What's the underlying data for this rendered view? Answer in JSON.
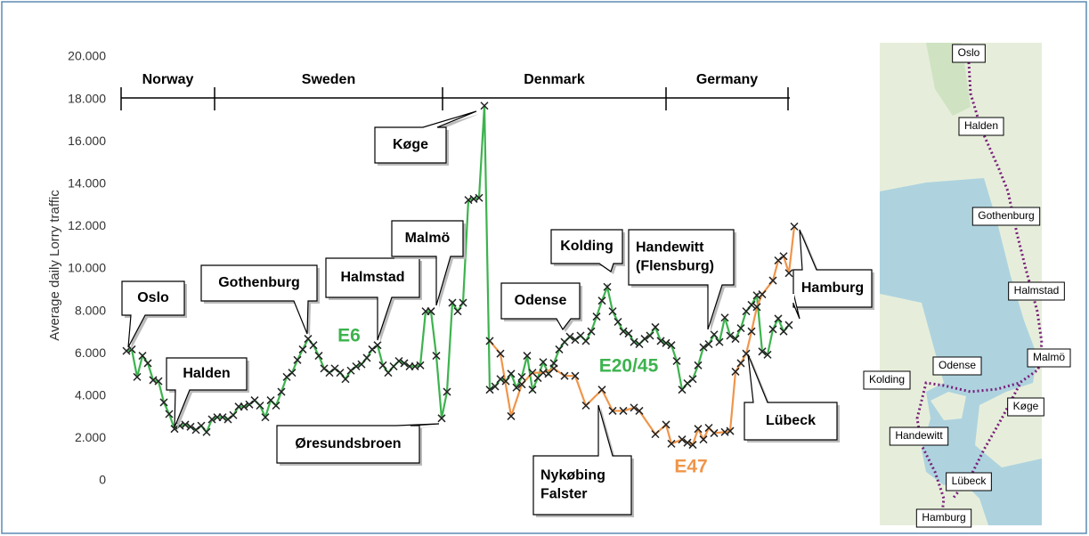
{
  "chart_data": {
    "type": "line",
    "ylabel": "Average daily Lorry traffic",
    "ylim": [
      0,
      20000
    ],
    "yticks": [
      0,
      {
        "value": 2000,
        "label": "2.000"
      },
      {
        "value": 4000,
        "label": "4.000"
      },
      {
        "value": 6000,
        "label": "6.000"
      },
      {
        "value": 8000,
        "label": "8.000"
      },
      {
        "value": 10000,
        "label": "10.000"
      },
      {
        "value": 12000,
        "label": "12.000"
      },
      {
        "value": 14000,
        "label": "14.000"
      },
      {
        "value": 16000,
        "label": "16.000"
      },
      {
        "value": 18000,
        "label": "18.000"
      },
      {
        "value": 20000,
        "label": "20.000"
      }
    ],
    "xlim": [
      0,
      127
    ],
    "regions": [
      "Norway",
      "Sweden",
      "Denmark",
      "Germany"
    ],
    "series": [
      {
        "name": "E6",
        "color": "#3db34e",
        "x": [
          1,
          2,
          3,
          4,
          5,
          6,
          7,
          8,
          9,
          10,
          11,
          12,
          13,
          14,
          15,
          16,
          17,
          18,
          19,
          20,
          21,
          22,
          23,
          24,
          25,
          26,
          27,
          28,
          29,
          30,
          31,
          32,
          33,
          34,
          35,
          36,
          37,
          38,
          39,
          40,
          41,
          42,
          43,
          44,
          45,
          46,
          47,
          48,
          49,
          50,
          51,
          52,
          53,
          54,
          55,
          56,
          57,
          58
        ],
        "values": [
          6130,
          6200,
          4900,
          5900,
          5550,
          4750,
          4700,
          3700,
          3150,
          2450,
          2600,
          2650,
          2550,
          2400,
          2600,
          2300,
          2900,
          3000,
          3000,
          2900,
          3100,
          3500,
          3500,
          3600,
          3800,
          3550,
          3000,
          3800,
          3550,
          4200,
          4900,
          5100,
          5700,
          6200,
          6700,
          6400,
          5900,
          5300,
          5100,
          5300,
          5100,
          4800,
          5200,
          5400,
          5500,
          5800,
          6200,
          6400,
          5450,
          5100,
          5400,
          5650,
          5550,
          5400,
          5400,
          5450,
          8000,
          8000
        ]
      },
      {
        "name": "E20/45",
        "color": "#3db34e",
        "x": [
          58,
          59,
          60,
          61,
          62,
          63,
          64,
          65,
          66,
          67,
          68,
          69,
          70,
          71,
          72,
          73,
          74,
          75,
          76,
          77,
          78,
          79,
          80,
          81,
          82,
          83,
          84,
          85,
          86,
          87,
          88,
          89,
          90,
          91,
          92,
          93,
          94,
          95,
          96,
          97,
          98,
          99,
          100,
          101,
          102,
          103,
          104,
          105,
          106,
          107,
          108,
          109,
          110,
          111,
          112,
          113,
          114,
          115,
          116,
          117,
          118,
          119,
          120,
          121,
          122,
          123,
          124,
          125
        ],
        "values": [
          8000,
          5900,
          2950,
          4200,
          8400,
          8000,
          8400,
          13250,
          13300,
          13350,
          17700,
          4300,
          4450,
          4800,
          4700,
          5050,
          4400,
          4900,
          5900,
          4300,
          4850,
          5600,
          5050,
          5550,
          6200,
          6550,
          6800,
          6650,
          6850,
          6600,
          7050,
          7750,
          8500,
          9150,
          8000,
          7500,
          7050,
          6950,
          6550,
          6450,
          6700,
          6850,
          7250,
          6600,
          6500,
          6400,
          5650,
          4300,
          4600,
          4800,
          5450,
          6300,
          6450,
          6900,
          6550,
          7700,
          6850,
          6700,
          7200,
          8000,
          8300,
          8750,
          6100,
          5950,
          7150,
          7650,
          7050,
          7350
        ]
      },
      {
        "name": "E47",
        "color": "#f0954a",
        "x": [
          69,
          71,
          73,
          75,
          77,
          79,
          81,
          83,
          85,
          87,
          90,
          92,
          94,
          96,
          97,
          100,
          102,
          103,
          105,
          106,
          107,
          108,
          109,
          110,
          111,
          113,
          114,
          115,
          116,
          117,
          118,
          119,
          120,
          122,
          123,
          124,
          125,
          126
        ],
        "values": [
          6600,
          6000,
          3050,
          4550,
          5100,
          5100,
          5300,
          4950,
          4950,
          3550,
          4300,
          3300,
          3300,
          3450,
          3300,
          2200,
          2650,
          1750,
          1950,
          1800,
          1700,
          2450,
          1950,
          2500,
          2250,
          2300,
          2350,
          5150,
          5550,
          6000,
          7050,
          8200,
          8800,
          9450,
          10400,
          10600,
          9800,
          12000
        ]
      }
    ],
    "annotations": [
      "Oslo",
      "Halden",
      "Gothenburg",
      "Halmstad",
      "Malmö",
      "Øresundsbroen",
      "Køge",
      "Kolding",
      "Odense",
      [
        "Handewitt",
        "(Flensburg)"
      ],
      "Hamburg",
      "Lübeck",
      [
        "Nykøbing",
        "Falster"
      ]
    ]
  },
  "map": {
    "labels": [
      "Oslo",
      "Halden",
      "Gothenburg",
      "Halmstad",
      "Malmö",
      "Køge",
      "Odense",
      "Kolding",
      "Handewitt",
      "Lübeck",
      "Hamburg"
    ]
  }
}
